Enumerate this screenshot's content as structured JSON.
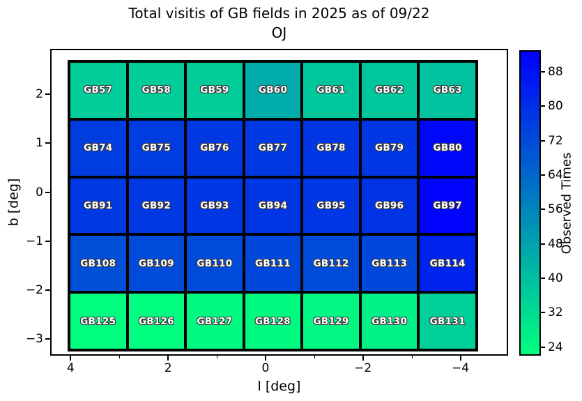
{
  "title": "Total visitis of GB fields in 2025 as of 09/22",
  "subtitle": "OJ",
  "chart_data": {
    "type": "heatmap",
    "title": "Total visitis of GB fields in 2025 as of 09/22\nOJ",
    "xlabel": "l [deg]",
    "ylabel": "b [deg]",
    "colorbar_label": "Observed Times",
    "colormap": "winter_r",
    "vmin": 22,
    "vmax": 93,
    "xlim": [
      4.42,
      -4.98
    ],
    "ylim": [
      -3.34,
      2.93
    ],
    "xticks": [
      4,
      2,
      0,
      -2,
      -4
    ],
    "xticks_minor": [
      3,
      1,
      -1,
      -3
    ],
    "yticks": [
      2,
      1,
      0,
      -1,
      -2,
      -3
    ],
    "colorbar_ticks": [
      88,
      80,
      72,
      64,
      56,
      48,
      40,
      32,
      24
    ],
    "grid_on": false,
    "rows": [
      {
        "b_center": 2.1,
        "fields": [
          "GB57",
          "GB58",
          "GB59",
          "GB60",
          "GB61",
          "GB62",
          "GB63"
        ],
        "values": [
          36,
          36,
          36,
          45,
          38,
          38,
          39
        ]
      },
      {
        "b_center": 0.9,
        "fields": [
          "GB74",
          "GB75",
          "GB76",
          "GB77",
          "GB78",
          "GB79",
          "GB80"
        ],
        "values": [
          76,
          76,
          77,
          77,
          78,
          78,
          91
        ]
      },
      {
        "b_center": -0.3,
        "fields": [
          "GB91",
          "GB92",
          "GB93",
          "GB94",
          "GB95",
          "GB96",
          "GB97"
        ],
        "values": [
          77,
          77,
          78,
          78,
          78,
          79,
          92
        ]
      },
      {
        "b_center": -1.5,
        "fields": [
          "GB108",
          "GB109",
          "GB110",
          "GB111",
          "GB112",
          "GB113",
          "GB114"
        ],
        "values": [
          71,
          72,
          72,
          73,
          72,
          73,
          83
        ]
      },
      {
        "b_center": -2.7,
        "fields": [
          "GB125",
          "GB126",
          "GB127",
          "GB128",
          "GB129",
          "GB130",
          "GB131"
        ],
        "values": [
          22,
          22,
          23,
          23,
          24,
          26,
          35
        ]
      }
    ]
  }
}
